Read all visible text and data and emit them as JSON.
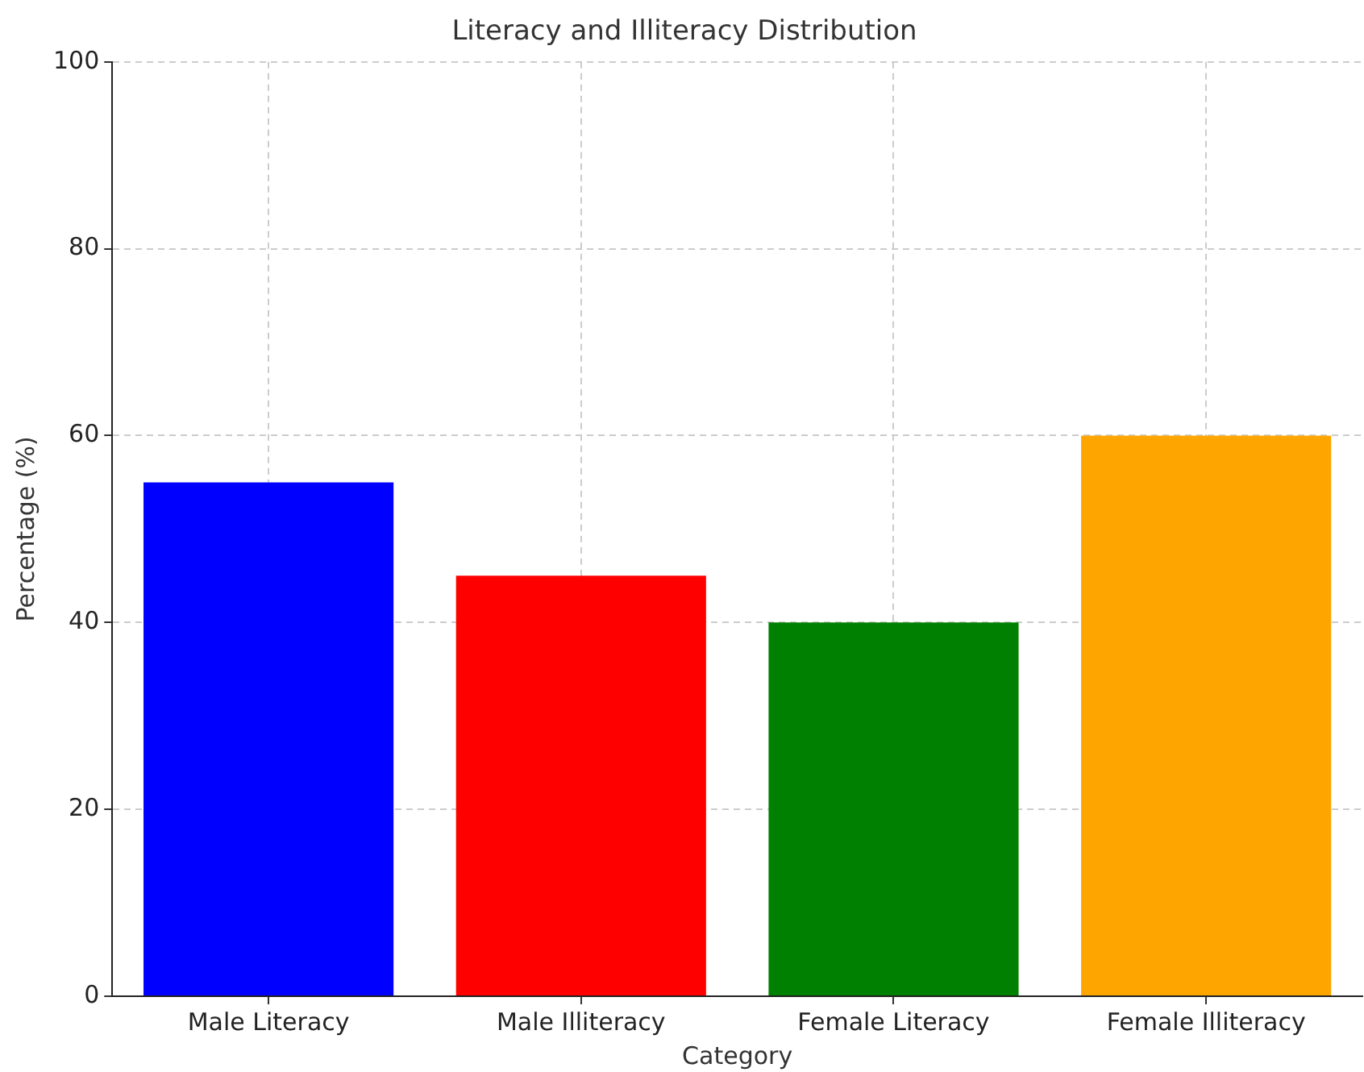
{
  "chart_data": {
    "type": "bar",
    "title": "Literacy and Illiteracy Distribution",
    "xlabel": "Category",
    "ylabel": "Percentage (%)",
    "categories": [
      "Male Literacy",
      "Male Illiteracy",
      "Female Literacy",
      "Female Illiteracy"
    ],
    "values": [
      55,
      45,
      40,
      60
    ],
    "colors": [
      "#0000ff",
      "#ff0000",
      "#008000",
      "#ffa500"
    ],
    "ylim": [
      0,
      100
    ],
    "yticks": [
      0,
      20,
      40,
      60,
      80,
      100
    ],
    "grid": true,
    "legend": false
  }
}
